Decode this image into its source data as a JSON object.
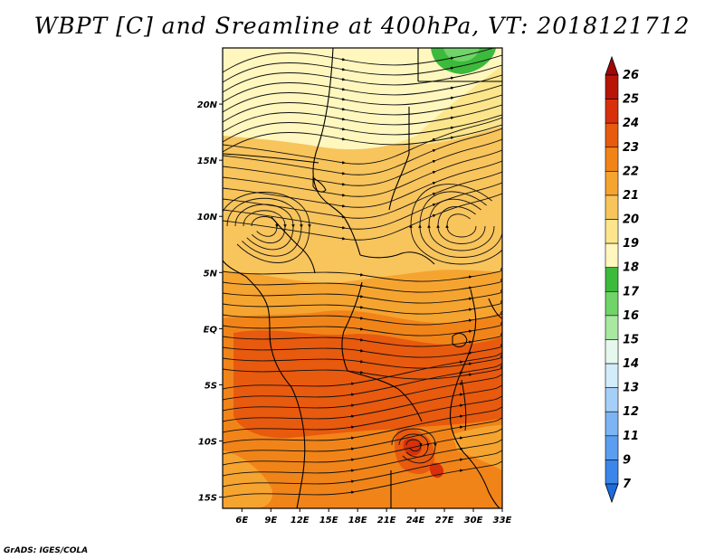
{
  "title": "WBPT [C] and Sreamline at 400hPa, VT: 2018121712",
  "credit": "GrADS: IGES/COLA",
  "map": {
    "lon_range": [
      4,
      33
    ],
    "lat_range": [
      -16,
      25
    ],
    "lon_ticks": [
      {
        "value": 6,
        "label": "6E"
      },
      {
        "value": 9,
        "label": "9E"
      },
      {
        "value": 12,
        "label": "12E"
      },
      {
        "value": 15,
        "label": "15E"
      },
      {
        "value": 18,
        "label": "18E"
      },
      {
        "value": 21,
        "label": "21E"
      },
      {
        "value": 24,
        "label": "24E"
      },
      {
        "value": 27,
        "label": "27E"
      },
      {
        "value": 30,
        "label": "30E"
      },
      {
        "value": 33,
        "label": "33E"
      }
    ],
    "lat_ticks": [
      {
        "value": 20,
        "label": "20N"
      },
      {
        "value": 15,
        "label": "15N"
      },
      {
        "value": 10,
        "label": "10N"
      },
      {
        "value": 5,
        "label": "5N"
      },
      {
        "value": 0,
        "label": "EQ"
      },
      {
        "value": -5,
        "label": "5S"
      },
      {
        "value": -10,
        "label": "10S"
      },
      {
        "value": -15,
        "label": "15S"
      }
    ]
  },
  "colorbar": {
    "labels": [
      "7",
      "9",
      "11",
      "12",
      "13",
      "14",
      "15",
      "16",
      "17",
      "18",
      "19",
      "20",
      "21",
      "22",
      "23",
      "24",
      "25",
      "26"
    ],
    "colors": [
      "#1e6cdc",
      "#3a86ea",
      "#5b9df0",
      "#7db4f4",
      "#a6cff8",
      "#d2ecfa",
      "#e6f8ee",
      "#a8e8a0",
      "#70d468",
      "#3cba3c",
      "#fff7be",
      "#fde58c",
      "#f8c45c",
      "#f6a430",
      "#f18418",
      "#e85a0e",
      "#d8300a",
      "#b81408",
      "#a00808"
    ],
    "colors_note": "first = bottom triangle, last = top triangle"
  }
}
